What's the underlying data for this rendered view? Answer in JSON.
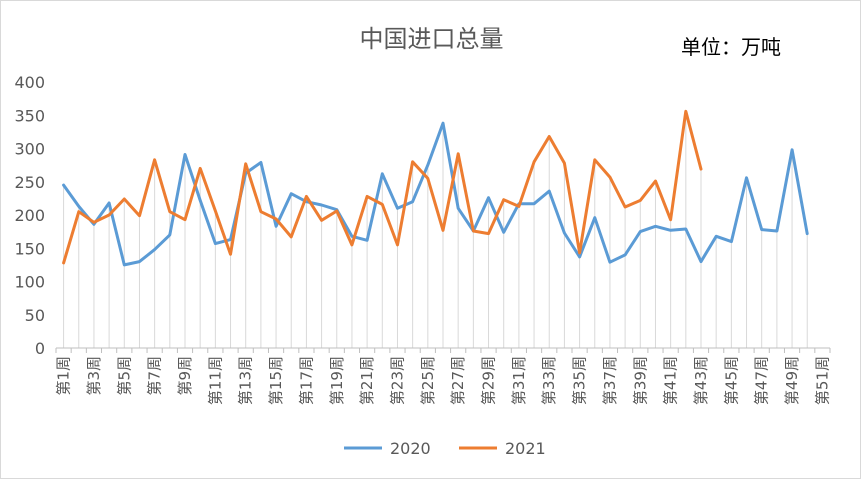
{
  "chart_data": {
    "type": "line",
    "title": "中国进口总量",
    "unit_label": "单位：万吨",
    "ylim": [
      0,
      400
    ],
    "yticks": [
      0,
      50,
      100,
      150,
      200,
      250,
      300,
      350,
      400
    ],
    "x_tick_labels": [
      "第1周",
      "第3周",
      "第5周",
      "第7周",
      "第9周",
      "第11周",
      "第13周",
      "第15周",
      "第17周",
      "第19周",
      "第21周",
      "第23周",
      "第25周",
      "第27周",
      "第29周",
      "第31周",
      "第33周",
      "第35周",
      "第37周",
      "第39周",
      "第41周",
      "第43周",
      "第45周",
      "第47周",
      "第49周",
      "第51周"
    ],
    "x_count": 51,
    "grid": "vertical drop lines at each week",
    "legend_position": "bottom",
    "series": [
      {
        "name": "2020",
        "color": "#5b9bd5",
        "values": [
          245,
          213,
          186,
          218,
          125,
          130,
          148,
          170,
          291,
          222,
          157,
          163,
          263,
          279,
          183,
          232,
          220,
          215,
          208,
          168,
          162,
          262,
          210,
          220,
          275,
          338,
          210,
          176,
          226,
          174,
          217,
          217,
          236,
          173,
          137,
          196,
          129,
          140,
          175,
          183,
          177,
          179,
          130,
          168,
          160,
          256,
          178,
          176,
          298,
          172
        ]
      },
      {
        "name": "2021",
        "color": "#ed7d31",
        "values": [
          128,
          205,
          189,
          200,
          224,
          199,
          283,
          205,
          193,
          270,
          206,
          141,
          277,
          205,
          194,
          167,
          228,
          192,
          206,
          155,
          228,
          216,
          155,
          280,
          255,
          177,
          292,
          176,
          172,
          223,
          213,
          280,
          318,
          278,
          143,
          283,
          257,
          212,
          222,
          251,
          193,
          356,
          269
        ]
      }
    ]
  }
}
